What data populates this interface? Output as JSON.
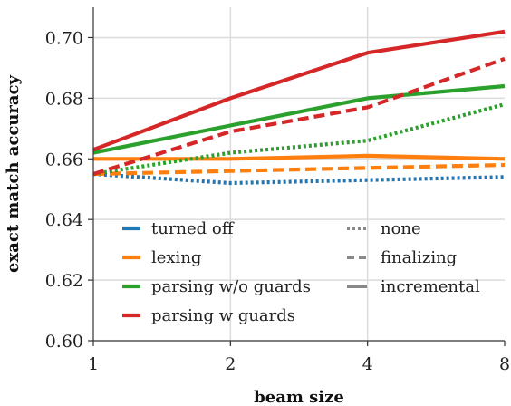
{
  "chart_data": {
    "type": "line",
    "xlabel": "beam size",
    "ylabel": "exact match accuracy",
    "x_scale": "log2",
    "x": [
      1,
      2,
      4,
      8
    ],
    "x_tick_labels": [
      "1",
      "2",
      "4",
      "8"
    ],
    "y_ticks": [
      0.6,
      0.62,
      0.64,
      0.66,
      0.68,
      0.7
    ],
    "y_tick_labels": [
      "0.60",
      "0.62",
      "0.64",
      "0.66",
      "0.68",
      "0.70"
    ],
    "xlim": [
      1,
      8
    ],
    "ylim": [
      0.6,
      0.71
    ],
    "grid": true,
    "legend_placement": "bottom-left",
    "colors": {
      "turned off": "#1f77b4",
      "lexing": "#ff7f0e",
      "parsing w/o guards": "#2ca02c",
      "parsing w guards": "#d62728",
      "style_key": "#888888"
    },
    "color_legend": [
      "turned off",
      "lexing",
      "parsing w/o guards",
      "parsing w guards"
    ],
    "style_legend": [
      {
        "label": "none",
        "dash": "dotted"
      },
      {
        "label": "finalizing",
        "dash": "dashed"
      },
      {
        "label": "incremental",
        "dash": "solid"
      }
    ],
    "series": [
      {
        "color_key": "turned off",
        "style": "dotted",
        "values": [
          0.655,
          0.652,
          0.653,
          0.654
        ]
      },
      {
        "color_key": "lexing",
        "style": "dashed",
        "values": [
          0.655,
          0.656,
          0.657,
          0.658
        ]
      },
      {
        "color_key": "lexing",
        "style": "solid",
        "values": [
          0.66,
          0.66,
          0.661,
          0.66
        ]
      },
      {
        "color_key": "parsing w/o guards",
        "style": "dotted",
        "values": [
          0.655,
          0.662,
          0.666,
          0.678
        ]
      },
      {
        "color_key": "parsing w/o guards",
        "style": "solid",
        "values": [
          0.662,
          0.671,
          0.68,
          0.684
        ]
      },
      {
        "color_key": "parsing w guards",
        "style": "dashed",
        "values": [
          0.655,
          0.669,
          0.677,
          0.693
        ]
      },
      {
        "color_key": "parsing w guards",
        "style": "solid",
        "values": [
          0.663,
          0.68,
          0.695,
          0.702
        ]
      }
    ]
  }
}
